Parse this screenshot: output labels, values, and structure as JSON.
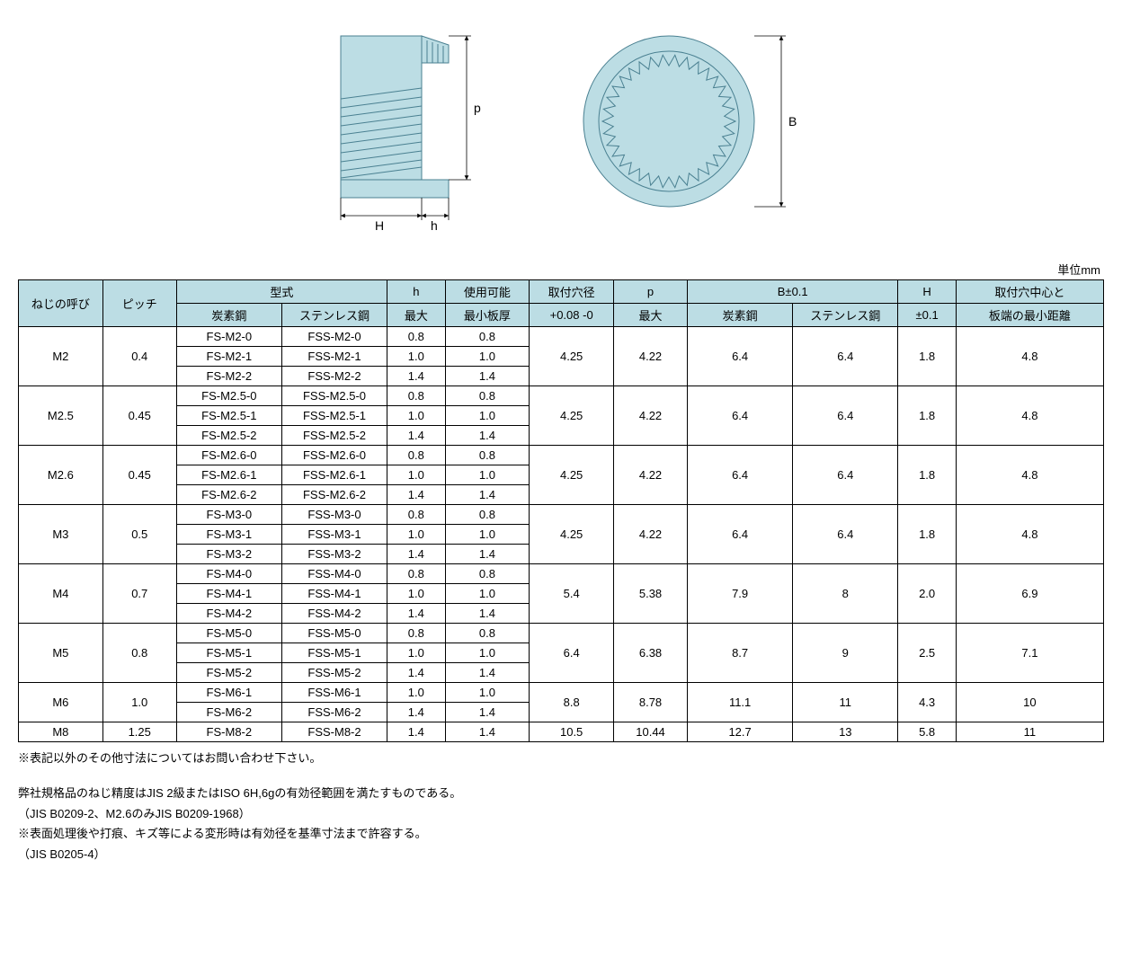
{
  "diagram": {
    "side_fill": "#bcdde4",
    "side_stroke": "#4a8091",
    "label_p": "p",
    "label_H": "H",
    "label_h": "h",
    "label_B": "B"
  },
  "unit_label": "単位mm",
  "headers": {
    "thread": "ねじの呼び",
    "pitch": "ピッチ",
    "model": "型式",
    "model_carbon": "炭素鋼",
    "model_stainless": "ステンレス鋼",
    "h_top": "h",
    "h_sub": "最大",
    "usable_top": "使用可能",
    "usable_sub": "最小板厚",
    "hole_top": "取付穴径",
    "hole_sub": "+0.08 -0",
    "p_top": "p",
    "p_sub": "最大",
    "B_top": "B±0.1",
    "B_carbon": "炭素鋼",
    "B_stainless": "ステンレス鋼",
    "H_top": "H",
    "H_sub": "±0.1",
    "edge_top": "取付穴中心と",
    "edge_sub": "板端の最小距離"
  },
  "groups": [
    {
      "thread": "M2",
      "pitch": "0.4",
      "rows": [
        {
          "cs": "FS-M2-0",
          "ss": "FSS-M2-0",
          "h": "0.8",
          "t": "0.8"
        },
        {
          "cs": "FS-M2-1",
          "ss": "FSS-M2-1",
          "h": "1.0",
          "t": "1.0"
        },
        {
          "cs": "FS-M2-2",
          "ss": "FSS-M2-2",
          "h": "1.4",
          "t": "1.4"
        }
      ],
      "hole": "4.25",
      "p": "4.22",
      "Bc": "6.4",
      "Bs": "6.4",
      "H": "1.8",
      "edge": "4.8"
    },
    {
      "thread": "M2.5",
      "pitch": "0.45",
      "rows": [
        {
          "cs": "FS-M2.5-0",
          "ss": "FSS-M2.5-0",
          "h": "0.8",
          "t": "0.8"
        },
        {
          "cs": "FS-M2.5-1",
          "ss": "FSS-M2.5-1",
          "h": "1.0",
          "t": "1.0"
        },
        {
          "cs": "FS-M2.5-2",
          "ss": "FSS-M2.5-2",
          "h": "1.4",
          "t": "1.4"
        }
      ],
      "hole": "4.25",
      "p": "4.22",
      "Bc": "6.4",
      "Bs": "6.4",
      "H": "1.8",
      "edge": "4.8"
    },
    {
      "thread": "M2.6",
      "pitch": "0.45",
      "rows": [
        {
          "cs": "FS-M2.6-0",
          "ss": "FSS-M2.6-0",
          "h": "0.8",
          "t": "0.8"
        },
        {
          "cs": "FS-M2.6-1",
          "ss": "FSS-M2.6-1",
          "h": "1.0",
          "t": "1.0"
        },
        {
          "cs": "FS-M2.6-2",
          "ss": "FSS-M2.6-2",
          "h": "1.4",
          "t": "1.4"
        }
      ],
      "hole": "4.25",
      "p": "4.22",
      "Bc": "6.4",
      "Bs": "6.4",
      "H": "1.8",
      "edge": "4.8"
    },
    {
      "thread": "M3",
      "pitch": "0.5",
      "rows": [
        {
          "cs": "FS-M3-0",
          "ss": "FSS-M3-0",
          "h": "0.8",
          "t": "0.8"
        },
        {
          "cs": "FS-M3-1",
          "ss": "FSS-M3-1",
          "h": "1.0",
          "t": "1.0"
        },
        {
          "cs": "FS-M3-2",
          "ss": "FSS-M3-2",
          "h": "1.4",
          "t": "1.4"
        }
      ],
      "hole": "4.25",
      "p": "4.22",
      "Bc": "6.4",
      "Bs": "6.4",
      "H": "1.8",
      "edge": "4.8"
    },
    {
      "thread": "M4",
      "pitch": "0.7",
      "rows": [
        {
          "cs": "FS-M4-0",
          "ss": "FSS-M4-0",
          "h": "0.8",
          "t": "0.8"
        },
        {
          "cs": "FS-M4-1",
          "ss": "FSS-M4-1",
          "h": "1.0",
          "t": "1.0"
        },
        {
          "cs": "FS-M4-2",
          "ss": "FSS-M4-2",
          "h": "1.4",
          "t": "1.4"
        }
      ],
      "hole": "5.4",
      "p": "5.38",
      "Bc": "7.9",
      "Bs": "8",
      "H": "2.0",
      "edge": "6.9"
    },
    {
      "thread": "M5",
      "pitch": "0.8",
      "rows": [
        {
          "cs": "FS-M5-0",
          "ss": "FSS-M5-0",
          "h": "0.8",
          "t": "0.8"
        },
        {
          "cs": "FS-M5-1",
          "ss": "FSS-M5-1",
          "h": "1.0",
          "t": "1.0"
        },
        {
          "cs": "FS-M5-2",
          "ss": "FSS-M5-2",
          "h": "1.4",
          "t": "1.4"
        }
      ],
      "hole": "6.4",
      "p": "6.38",
      "Bc": "8.7",
      "Bs": "9",
      "H": "2.5",
      "edge": "7.1"
    },
    {
      "thread": "M6",
      "pitch": "1.0",
      "rows": [
        {
          "cs": "FS-M6-1",
          "ss": "FSS-M6-1",
          "h": "1.0",
          "t": "1.0"
        },
        {
          "cs": "FS-M6-2",
          "ss": "FSS-M6-2",
          "h": "1.4",
          "t": "1.4"
        }
      ],
      "hole": "8.8",
      "p": "8.78",
      "Bc": "11.1",
      "Bs": "11",
      "H": "4.3",
      "edge": "10"
    },
    {
      "thread": "M8",
      "pitch": "1.25",
      "rows": [
        {
          "cs": "FS-M8-2",
          "ss": "FSS-M8-2",
          "h": "1.4",
          "t": "1.4"
        }
      ],
      "hole": "10.5",
      "p": "10.44",
      "Bc": "12.7",
      "Bs": "13",
      "H": "5.8",
      "edge": "11"
    }
  ],
  "notes": {
    "n1": "※表記以外のその他寸法についてはお問い合わせ下さい。",
    "n2": "弊社規格品のねじ精度はJIS 2級またはISO 6H,6gの有効径範囲を満たすものである。",
    "n3": "（JIS B0209-2、M2.6のみJIS B0209-1968）",
    "n4": "※表面処理後や打痕、キズ等による変形時は有効径を基準寸法まで許容する。",
    "n5": "（JIS B0205-4）"
  },
  "colwidths": [
    "80",
    "70",
    "100",
    "100",
    "55",
    "80",
    "80",
    "70",
    "100",
    "100",
    "55",
    "140"
  ]
}
